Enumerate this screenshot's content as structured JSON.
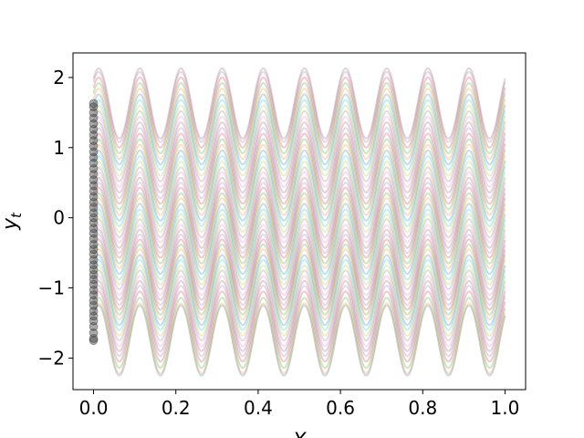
{
  "chart_data": {
    "type": "line",
    "title": "",
    "xlabel": "X",
    "ylabel": "y",
    "ylabel_subscript": "t",
    "xlim": [
      -0.05,
      1.05
    ],
    "ylim": [
      -2.45,
      2.35
    ],
    "xticks": [
      0.0,
      0.2,
      0.4,
      0.6,
      0.8,
      1.0
    ],
    "xtick_labels": [
      "0.0",
      "0.2",
      "0.4",
      "0.6",
      "0.8",
      "1.0"
    ],
    "yticks": [
      -2,
      -1,
      0,
      1,
      2
    ],
    "ytick_labels": [
      "−2",
      "−1",
      "0",
      "1",
      "2"
    ],
    "grid": false,
    "legend": "none",
    "series_alpha": 0.25,
    "marker_alpha": 0.45,
    "marker_color": "#444444",
    "curve": {
      "formula": "offset + 0.5*sin(2*pi*10*x + pi/4)",
      "amplitude": 0.5,
      "frequency": 10,
      "phase": 0.7854,
      "x_range": [
        0.0,
        1.0
      ]
    },
    "palette": [
      "#1f77b4",
      "#ff7f0e",
      "#2ca02c",
      "#d62728",
      "#9467bd",
      "#8c564b",
      "#e377c2",
      "#7f7f7f",
      "#bcbd22",
      "#17becf"
    ],
    "series": [
      {
        "offset": -1.75
      },
      {
        "offset": -1.72
      },
      {
        "offset": -1.64
      },
      {
        "offset": -1.55
      },
      {
        "offset": -1.47
      },
      {
        "offset": -1.4
      },
      {
        "offset": -1.33
      },
      {
        "offset": -1.25
      },
      {
        "offset": -1.18
      },
      {
        "offset": -1.1
      },
      {
        "offset": -1.03
      },
      {
        "offset": -0.95
      },
      {
        "offset": -0.88
      },
      {
        "offset": -0.81
      },
      {
        "offset": -0.74
      },
      {
        "offset": -0.67
      },
      {
        "offset": -0.6
      },
      {
        "offset": -0.52
      },
      {
        "offset": -0.45
      },
      {
        "offset": -0.38
      },
      {
        "offset": -0.3
      },
      {
        "offset": -0.22
      },
      {
        "offset": -0.15
      },
      {
        "offset": -0.07
      },
      {
        "offset": 0.0
      },
      {
        "offset": 0.07
      },
      {
        "offset": 0.15
      },
      {
        "offset": 0.22
      },
      {
        "offset": 0.3
      },
      {
        "offset": 0.38
      },
      {
        "offset": 0.46
      },
      {
        "offset": 0.54
      },
      {
        "offset": 0.62
      },
      {
        "offset": 0.7
      },
      {
        "offset": 0.78
      },
      {
        "offset": 0.86
      },
      {
        "offset": 0.94
      },
      {
        "offset": 1.02
      },
      {
        "offset": 1.1
      },
      {
        "offset": 1.18
      },
      {
        "offset": 1.26
      },
      {
        "offset": 1.34
      },
      {
        "offset": 1.42
      },
      {
        "offset": 1.5
      },
      {
        "offset": 1.58
      },
      {
        "offset": 1.63
      }
    ]
  }
}
